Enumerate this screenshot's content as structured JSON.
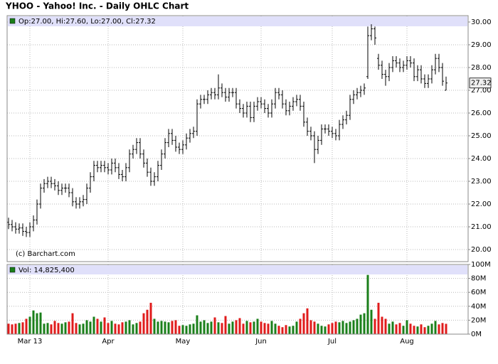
{
  "chart_data": {
    "type": "ohlc",
    "title": "YHOO - Yahoo! Inc. - Daily OHLC Chart",
    "legend_text": "Op:27.00, Hi:27.60, Lo:27.00, Cl:27.32",
    "credit": "(c) Barchart.com",
    "categories": [
      null,
      null,
      null,
      null,
      null,
      null,
      "Mar 13",
      null,
      null,
      null,
      null,
      null,
      null,
      null,
      null,
      null,
      null,
      null,
      null,
      null,
      null,
      null,
      null,
      null,
      null,
      null,
      null,
      null,
      "Apr",
      null,
      null,
      null,
      null,
      null,
      null,
      null,
      null,
      null,
      null,
      null,
      null,
      null,
      null,
      null,
      null,
      null,
      null,
      null,
      null,
      "May",
      null,
      null,
      null,
      null,
      null,
      null,
      null,
      null,
      null,
      null,
      null,
      null,
      null,
      null,
      null,
      null,
      null,
      null,
      null,
      null,
      null,
      "Jun",
      null,
      null,
      null,
      null,
      null,
      null,
      null,
      null,
      null,
      null,
      null,
      null,
      null,
      null,
      null,
      null,
      null,
      null,
      null,
      "Jul",
      null,
      null,
      null,
      null,
      null,
      null,
      null,
      null,
      null,
      null,
      null,
      null,
      null,
      null,
      null,
      null,
      null,
      null,
      null,
      null,
      "Aug",
      null,
      null,
      null,
      null,
      null,
      null,
      null,
      null,
      null,
      null,
      null
    ],
    "open": [
      21.2,
      21.1,
      21.0,
      20.9,
      20.95,
      20.8,
      20.75,
      21.0,
      21.3,
      22.0,
      22.7,
      22.9,
      23.0,
      22.9,
      22.8,
      22.6,
      22.7,
      22.7,
      22.5,
      22.1,
      22.0,
      22.1,
      22.2,
      22.7,
      23.2,
      23.7,
      23.6,
      23.7,
      23.6,
      23.5,
      23.8,
      23.6,
      23.3,
      23.2,
      23.6,
      24.2,
      24.4,
      24.7,
      24.2,
      23.8,
      23.4,
      23.0,
      23.2,
      23.7,
      24.2,
      24.7,
      25.1,
      24.8,
      24.5,
      24.4,
      24.6,
      24.9,
      25.1,
      25.2,
      26.4,
      26.6,
      26.6,
      26.8,
      26.9,
      26.8,
      27.1,
      26.9,
      26.7,
      26.9,
      26.9,
      26.4,
      26.2,
      26.0,
      26.3,
      25.8,
      26.3,
      26.5,
      26.4,
      26.2,
      26.0,
      26.4,
      26.9,
      26.8,
      26.4,
      26.1,
      26.3,
      26.5,
      26.6,
      26.3,
      25.6,
      25.2,
      25.0,
      24.4,
      24.8,
      25.3,
      25.3,
      25.2,
      25.1,
      25.0,
      25.5,
      25.7,
      25.9,
      26.6,
      26.8,
      26.9,
      27.0,
      27.6,
      29.4,
      29.7,
      28.4,
      28.1,
      27.7,
      27.6,
      28.0,
      28.3,
      28.2,
      28.0,
      28.1,
      28.3,
      28.2,
      27.6,
      27.9,
      27.5,
      27.3,
      27.5,
      27.9,
      28.4,
      28.0,
      27.0
    ],
    "high": [
      21.4,
      21.3,
      21.2,
      21.15,
      21.15,
      21.0,
      21.2,
      21.5,
      22.2,
      22.9,
      23.1,
      23.2,
      23.2,
      23.1,
      23.0,
      22.9,
      22.9,
      22.9,
      22.7,
      22.3,
      22.3,
      22.4,
      22.9,
      23.4,
      23.9,
      23.9,
      23.9,
      23.9,
      23.8,
      24.0,
      24.0,
      23.8,
      23.5,
      23.8,
      24.4,
      24.6,
      24.9,
      24.9,
      24.4,
      24.0,
      23.6,
      23.4,
      23.9,
      24.4,
      24.9,
      25.3,
      25.3,
      25.0,
      24.7,
      24.8,
      25.1,
      25.3,
      25.4,
      26.6,
      26.8,
      26.8,
      27.0,
      27.1,
      27.1,
      27.7,
      27.3,
      27.1,
      27.1,
      27.1,
      27.1,
      26.6,
      26.4,
      26.5,
      26.5,
      26.5,
      26.7,
      26.7,
      26.6,
      26.4,
      26.6,
      27.1,
      27.1,
      27.0,
      26.6,
      26.5,
      26.7,
      26.8,
      26.8,
      26.5,
      25.8,
      25.4,
      25.2,
      25.0,
      25.5,
      25.5,
      25.5,
      25.4,
      25.3,
      25.7,
      25.9,
      26.1,
      26.8,
      27.0,
      27.1,
      27.2,
      27.3,
      29.8,
      29.9,
      29.8,
      28.6,
      28.3,
      27.9,
      28.2,
      28.5,
      28.5,
      28.4,
      28.3,
      28.5,
      28.5,
      28.4,
      28.1,
      28.1,
      27.7,
      27.7,
      28.1,
      28.6,
      28.6,
      28.2,
      27.6
    ],
    "low": [
      20.9,
      20.8,
      20.7,
      20.7,
      20.6,
      20.55,
      20.55,
      20.8,
      21.1,
      21.8,
      22.5,
      22.7,
      22.7,
      22.6,
      22.4,
      22.4,
      22.5,
      22.3,
      21.9,
      21.8,
      21.8,
      21.9,
      22.0,
      22.5,
      23.0,
      23.4,
      23.4,
      23.4,
      23.3,
      23.3,
      23.4,
      23.1,
      23.0,
      23.0,
      23.4,
      24.0,
      24.2,
      24.0,
      23.6,
      23.2,
      22.8,
      22.8,
      23.0,
      23.5,
      24.0,
      24.5,
      24.6,
      24.3,
      24.2,
      24.2,
      24.4,
      24.7,
      24.9,
      25.0,
      26.2,
      26.4,
      26.4,
      26.6,
      26.6,
      26.6,
      26.7,
      26.5,
      26.5,
      26.7,
      26.2,
      26.0,
      25.8,
      25.8,
      25.6,
      25.6,
      26.1,
      26.2,
      26.0,
      25.8,
      25.8,
      26.2,
      26.6,
      26.2,
      25.9,
      25.9,
      26.1,
      26.3,
      26.1,
      25.4,
      25.0,
      24.8,
      23.8,
      24.2,
      24.6,
      25.1,
      25.0,
      24.9,
      24.8,
      24.8,
      25.3,
      25.5,
      25.7,
      26.4,
      26.6,
      26.7,
      26.8,
      27.5,
      29.2,
      29.0,
      27.9,
      27.5,
      27.2,
      27.4,
      27.8,
      28.0,
      27.8,
      27.8,
      27.9,
      28.0,
      27.4,
      27.4,
      27.3,
      27.1,
      27.1,
      27.3,
      27.7,
      27.8,
      27.2,
      27.0
    ],
    "close": [
      21.1,
      21.0,
      20.9,
      20.95,
      20.8,
      20.75,
      21.0,
      21.3,
      22.0,
      22.7,
      22.9,
      23.0,
      22.9,
      22.8,
      22.6,
      22.7,
      22.7,
      22.5,
      22.1,
      22.0,
      22.1,
      22.2,
      22.7,
      23.2,
      23.7,
      23.6,
      23.7,
      23.6,
      23.5,
      23.8,
      23.6,
      23.3,
      23.2,
      23.6,
      24.2,
      24.4,
      24.7,
      24.2,
      23.8,
      23.4,
      23.0,
      23.2,
      23.7,
      24.2,
      24.7,
      25.1,
      24.8,
      24.5,
      24.4,
      24.6,
      24.9,
      25.1,
      25.2,
      26.4,
      26.6,
      26.6,
      26.8,
      26.9,
      26.8,
      27.1,
      26.9,
      26.7,
      26.9,
      26.9,
      26.4,
      26.2,
      26.0,
      26.3,
      25.8,
      26.3,
      26.5,
      26.4,
      26.2,
      26.0,
      26.4,
      26.9,
      26.8,
      26.4,
      26.1,
      26.3,
      26.5,
      26.6,
      26.3,
      25.6,
      25.2,
      25.0,
      24.4,
      24.8,
      25.3,
      25.3,
      25.2,
      25.1,
      25.0,
      25.5,
      25.7,
      25.9,
      26.6,
      26.8,
      26.9,
      27.0,
      27.1,
      29.4,
      29.7,
      29.3,
      28.1,
      27.7,
      27.6,
      28.0,
      28.3,
      28.2,
      28.0,
      28.1,
      28.3,
      28.2,
      27.6,
      27.9,
      27.5,
      27.3,
      27.5,
      27.9,
      28.4,
      28.0,
      27.4,
      27.32
    ],
    "bar_color": "#000000",
    "up_color": "#1a7f1a",
    "down_color": "#e01b1b",
    "ylim": [
      19.47,
      30.28
    ],
    "yticks": [
      {
        "value": 20,
        "label": "20.00"
      },
      {
        "value": 21,
        "label": "21.00"
      },
      {
        "value": 22,
        "label": "22.00"
      },
      {
        "value": 23,
        "label": "23.00"
      },
      {
        "value": 24,
        "label": "24.00"
      },
      {
        "value": 25,
        "label": "25.00"
      },
      {
        "value": 26,
        "label": "26.00"
      },
      {
        "value": 27,
        "label": "27.00"
      },
      {
        "value": 28,
        "label": "28.00"
      },
      {
        "value": 29,
        "label": "29.00"
      },
      {
        "value": 30,
        "label": "30.00"
      }
    ],
    "grid": true,
    "volume": {
      "legend_text": "Vol: 14,825,400",
      "values": [
        15,
        14,
        15,
        16,
        17,
        22,
        25,
        34,
        30,
        31,
        15,
        16,
        14,
        19,
        16,
        15,
        17,
        18,
        30,
        16,
        14,
        15,
        20,
        18,
        25,
        22,
        18,
        24,
        16,
        19,
        15,
        14,
        17,
        18,
        20,
        14,
        16,
        18,
        30,
        35,
        45,
        22,
        18,
        19,
        18,
        17,
        19,
        20,
        12,
        13,
        12,
        14,
        15,
        27,
        18,
        20,
        16,
        18,
        24,
        17,
        16,
        26,
        15,
        18,
        20,
        23,
        15,
        19,
        17,
        18,
        22,
        18,
        16,
        15,
        19,
        15,
        12,
        10,
        13,
        11,
        12,
        18,
        22,
        30,
        37,
        20,
        18,
        15,
        12,
        11,
        14,
        16,
        18,
        17,
        19,
        16,
        18,
        20,
        22,
        28,
        30,
        85,
        35,
        22,
        45,
        25,
        22,
        15,
        18,
        14,
        16,
        12,
        20,
        15,
        12,
        11,
        14,
        10,
        12,
        15,
        19,
        14,
        16,
        14.8254
      ],
      "ylim": [
        0,
        100
      ],
      "yticks": [
        {
          "value": 0,
          "label": "0M"
        },
        {
          "value": 20,
          "label": "20M"
        },
        {
          "value": 40,
          "label": "40M"
        },
        {
          "value": 60,
          "label": "60M"
        },
        {
          "value": 80,
          "label": "80M"
        },
        {
          "value": 100,
          "label": "100M"
        }
      ]
    }
  }
}
